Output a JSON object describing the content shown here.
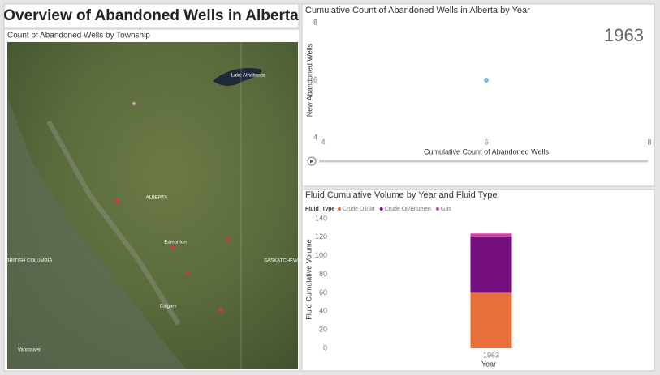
{
  "header": {
    "title": "Overview of Abandoned Wells in Alberta"
  },
  "map": {
    "title": "Count of Abandoned Wells by Township",
    "labels": [
      "Lake Athabasca",
      "ALBERTA",
      "Edmonton",
      "BRITISH COLUMBIA",
      "SASKATCHEWAN",
      "Calgary",
      "Vancouver"
    ]
  },
  "chart_data": [
    {
      "type": "scatter",
      "title": "Cumulative Count of Abandoned Wells in Alberta by Year",
      "annotation": "1963",
      "x_label": "Cumulative Count of Abandoned Wells",
      "y_label": "New Abandoned Wells",
      "x": [
        6
      ],
      "values": [
        6
      ],
      "color": "#7ab8e6",
      "xlim": [
        4,
        8
      ],
      "xticks": [
        4,
        6,
        8
      ],
      "ylim": [
        4,
        8
      ],
      "yticks": [
        4,
        6,
        8
      ]
    },
    {
      "type": "stacked_bar",
      "title": "Fluid Cumulative Volume by Year and Fluid Type",
      "legend_title": "Fluid_Type",
      "x_label": "Year",
      "y_label": "Fluid Cumulative Volume",
      "categories": [
        "1963"
      ],
      "series": [
        {
          "name": "Crude Oil/Bit",
          "color": "#e8703a",
          "values": [
            60
          ]
        },
        {
          "name": "Crude Oil/Bitumen",
          "color": "#76107e",
          "values": [
            61
          ]
        },
        {
          "name": "Gas",
          "color": "#d63fa0",
          "values": [
            3
          ]
        }
      ],
      "ylim": [
        0,
        140
      ],
      "yticks": [
        0,
        20,
        40,
        60,
        80,
        100,
        120,
        140
      ]
    }
  ]
}
